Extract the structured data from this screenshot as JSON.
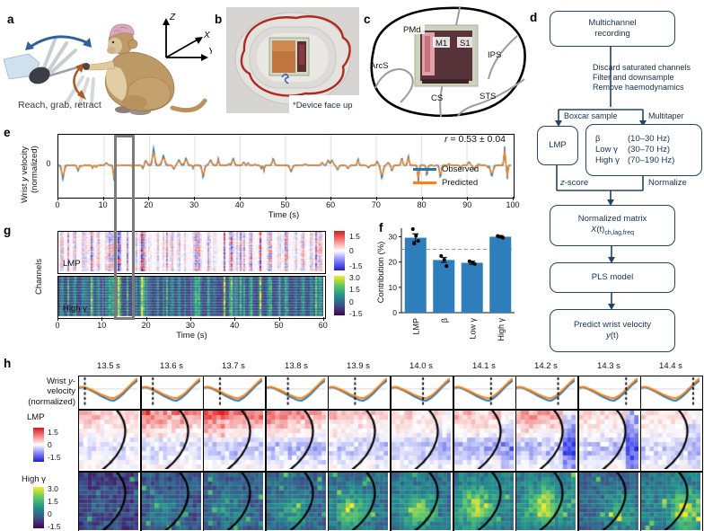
{
  "panels": {
    "a": "a",
    "b": "b",
    "c": "c",
    "d": "d",
    "e": "e",
    "f": "f",
    "g": "g",
    "h": "h"
  },
  "panel_a": {
    "caption": "Reach, grab, retract",
    "axis_z": "Z",
    "axis_x": "X",
    "axis_y": "Y"
  },
  "panel_b": {
    "caption": "*Device face up"
  },
  "panel_c": {
    "pmd": "PMd",
    "m1": "M1",
    "s1": "S1",
    "arcs": "ArcS",
    "cs": "CS",
    "ips": "IPS",
    "sts": "STS"
  },
  "panel_d": {
    "box_recording": "Multichannel recording",
    "preprocess_steps": [
      "Discard saturated channels",
      "Filter and downsample",
      "Remove haemodynamics"
    ],
    "branch_left": "Boxcar sample",
    "branch_right": "Multitaper",
    "box_lmp": "LMP",
    "bands": [
      {
        "name": "β",
        "range": "(10–30 Hz)"
      },
      {
        "name": "Low γ",
        "range": "(30–70 Hz)"
      },
      {
        "name": "High γ",
        "range": "(70–190 Hz)"
      }
    ],
    "zscore_it": "z",
    "zscore_rest": "-score",
    "normalize": "Normalize",
    "box_matrix_line1": "Normalized matrix",
    "matrix_var": "X",
    "matrix_args": "(t)",
    "matrix_sub": "ch,lag,freq",
    "box_pls": "PLS model",
    "box_predict_line1": "Predict wrist velocity",
    "predict_var": "y",
    "predict_args": "(t)"
  },
  "panel_e": {
    "ylabel_pre": "Wrist ",
    "ylabel_it": "y",
    "ylabel_post": " velocity",
    "ylabel_line2": "(normalized)",
    "ytick": "0",
    "xticks": [
      "0",
      "10",
      "20",
      "30",
      "40",
      "50",
      "60",
      "70",
      "80",
      "90",
      "100"
    ],
    "xlabel": "Time (s)",
    "r_it": "r",
    "r_rest": " = 0.53 ± 0.04",
    "legend": [
      {
        "label": "Observed",
        "color": "#1f77b4"
      },
      {
        "label": "Predicted",
        "color": "#ff7f0e"
      }
    ]
  },
  "panel_f": {
    "chart_data": {
      "type": "bar",
      "categories": [
        "LMP",
        "β",
        "Low γ",
        "High γ"
      ],
      "values": [
        29.6,
        20.8,
        19.7,
        30.0
      ],
      "points": [
        [
          33.0,
          30.4,
          28.3,
          27.3
        ],
        [
          22.4,
          20.9,
          18.4
        ],
        [
          20.3,
          19.7,
          19.2
        ],
        [
          30.3,
          30.0,
          29.6
        ]
      ],
      "errors": [
        1.5,
        1.0,
        0.6,
        0.4
      ],
      "dashed_reference": 25,
      "ylabel": "Contribution (%)",
      "yticks": [
        0,
        10,
        20,
        30
      ],
      "ylim": [
        0,
        34
      ],
      "bar_color": "#2e7ebc"
    }
  },
  "panel_g": {
    "ylabel": "Channels",
    "map_labels": [
      "LMP",
      "High γ"
    ],
    "xticks": [
      "0",
      "10",
      "20",
      "30",
      "40",
      "50",
      "60"
    ],
    "xlabel": "Time (s)",
    "cbar_lmp_ticks": [
      "1.5",
      "0",
      "-1.5"
    ],
    "cbar_hg_ticks": [
      "3.0",
      "1.5",
      "0",
      "-1.5"
    ]
  },
  "panel_h": {
    "rowlabel_l1_pre": "Wrist ",
    "rowlabel_l1_it": "y",
    "rowlabel_l1_post": "-",
    "rowlabel_l2": "velocity",
    "rowlabel_l3": "(normalized)",
    "label_lmp": "LMP",
    "label_hg": "High γ",
    "times": [
      "13.5 s",
      "13.6 s",
      "13.7 s",
      "13.8 s",
      "13.9 s",
      "14.0 s",
      "14.1 s",
      "14.2 s",
      "14.3 s",
      "14.4 s"
    ],
    "cbar_lmp_ticks": [
      "1.5",
      "0",
      "-1.5"
    ],
    "cbar_hg_ticks": [
      "3.0",
      "1.5",
      "0",
      "-1.5"
    ]
  },
  "colors": {
    "observed": "#1f77b4",
    "predicted": "#ff7f0e",
    "bar": "#2e7ebc",
    "flow_line": "#24436b",
    "highlight_box": "#7b7b7b"
  }
}
